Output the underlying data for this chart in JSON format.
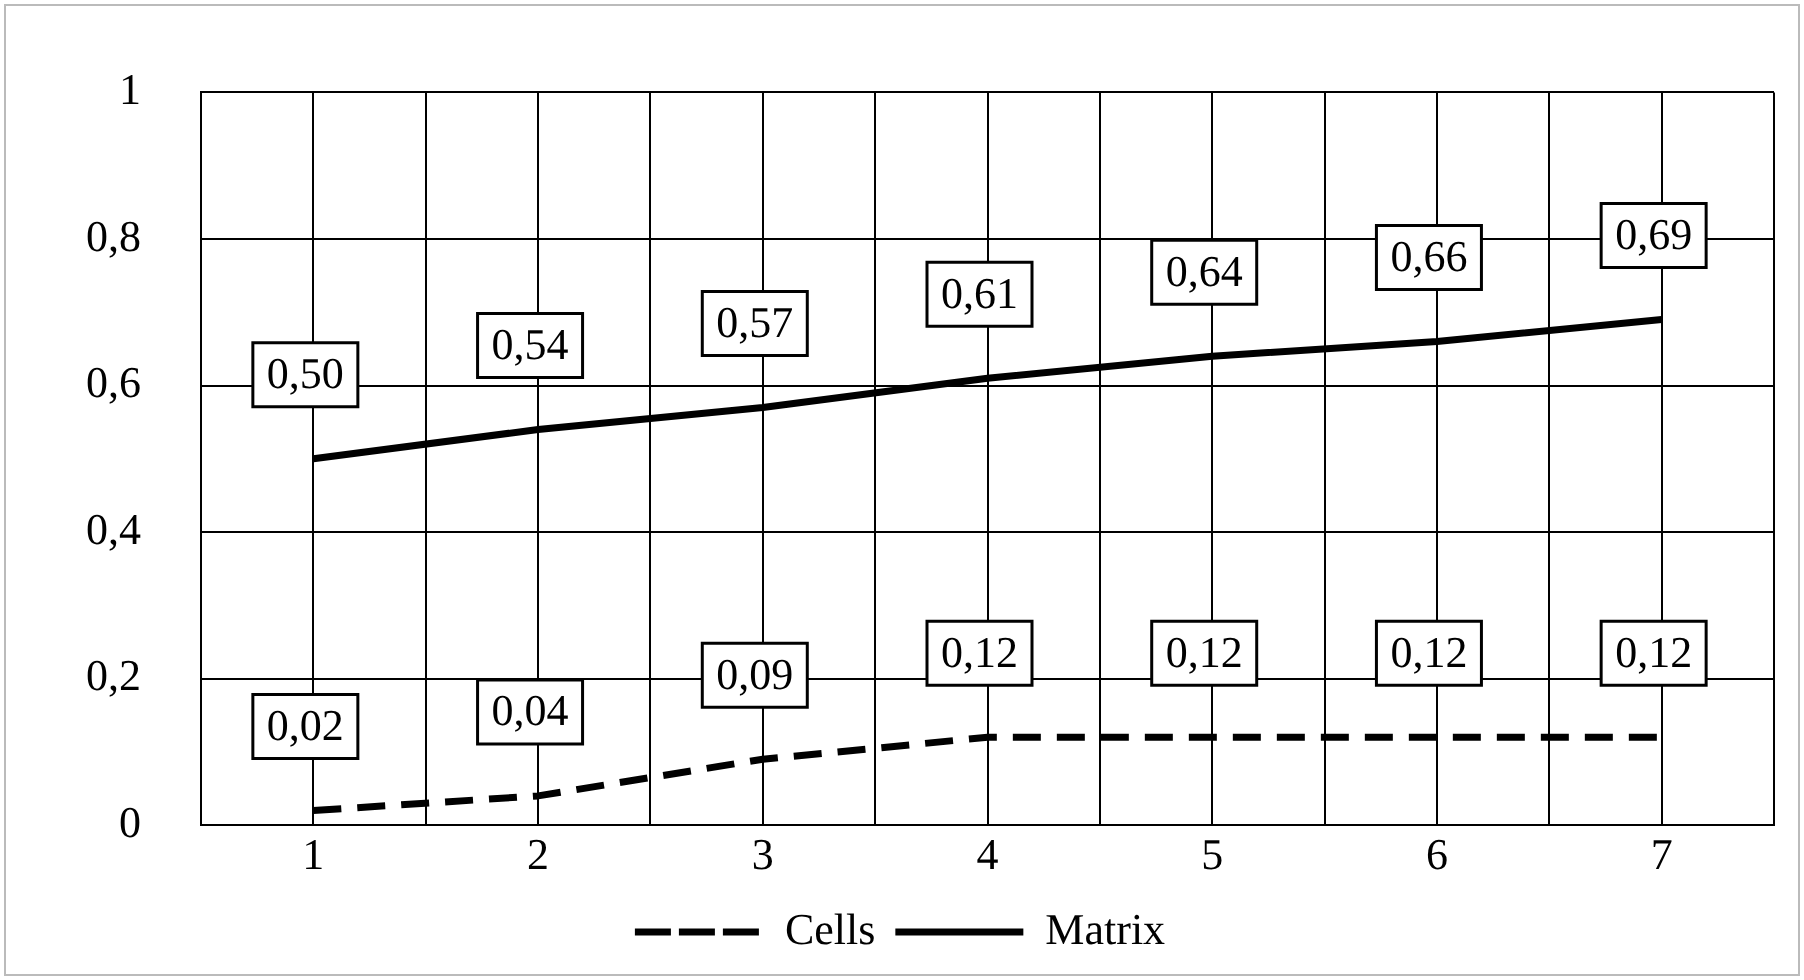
{
  "chart_data": {
    "type": "line",
    "x": [
      1,
      2,
      3,
      4,
      5,
      6,
      7
    ],
    "xlim": [
      0.5,
      7.5
    ],
    "xticks": [
      {
        "value": 0.5,
        "label": null
      },
      1,
      {
        "value": 1.5,
        "label": null
      },
      2,
      {
        "value": 2.5,
        "label": null
      },
      3,
      {
        "value": 3.5,
        "label": null
      },
      4,
      {
        "value": 4.5,
        "label": null
      },
      5,
      {
        "value": 5.5,
        "label": null
      },
      6,
      {
        "value": 6.5,
        "label": null
      },
      7,
      {
        "value": 7.5,
        "label": null
      }
    ],
    "ylim": [
      0,
      1
    ],
    "yticks": [
      0,
      {
        "value": 0.2,
        "label": "0,2"
      },
      {
        "value": 0.4,
        "label": "0,4"
      },
      {
        "value": 0.6,
        "label": "0,6"
      },
      {
        "value": 0.8,
        "label": "0,8"
      },
      1
    ],
    "grid": true,
    "legend": "bottom",
    "marker": "none",
    "series": [
      {
        "name": "Cells",
        "color": "#000000",
        "line_style": "dashed",
        "values": [
          0.02,
          0.04,
          0.09,
          0.12,
          0.12,
          0.12,
          0.12
        ],
        "value_labels": [
          "0,02",
          "0,04",
          "0,09",
          "0,12",
          "0,12",
          "0,12",
          "0,12"
        ]
      },
      {
        "name": "Matrix",
        "color": "#000000",
        "line_style": "solid",
        "values": [
          0.5,
          0.54,
          0.57,
          0.61,
          0.64,
          0.66,
          0.69
        ],
        "value_labels": [
          "0,50",
          "0,54",
          "0,57",
          "0,61",
          "0,64",
          "0,66",
          "0,69"
        ]
      }
    ]
  }
}
